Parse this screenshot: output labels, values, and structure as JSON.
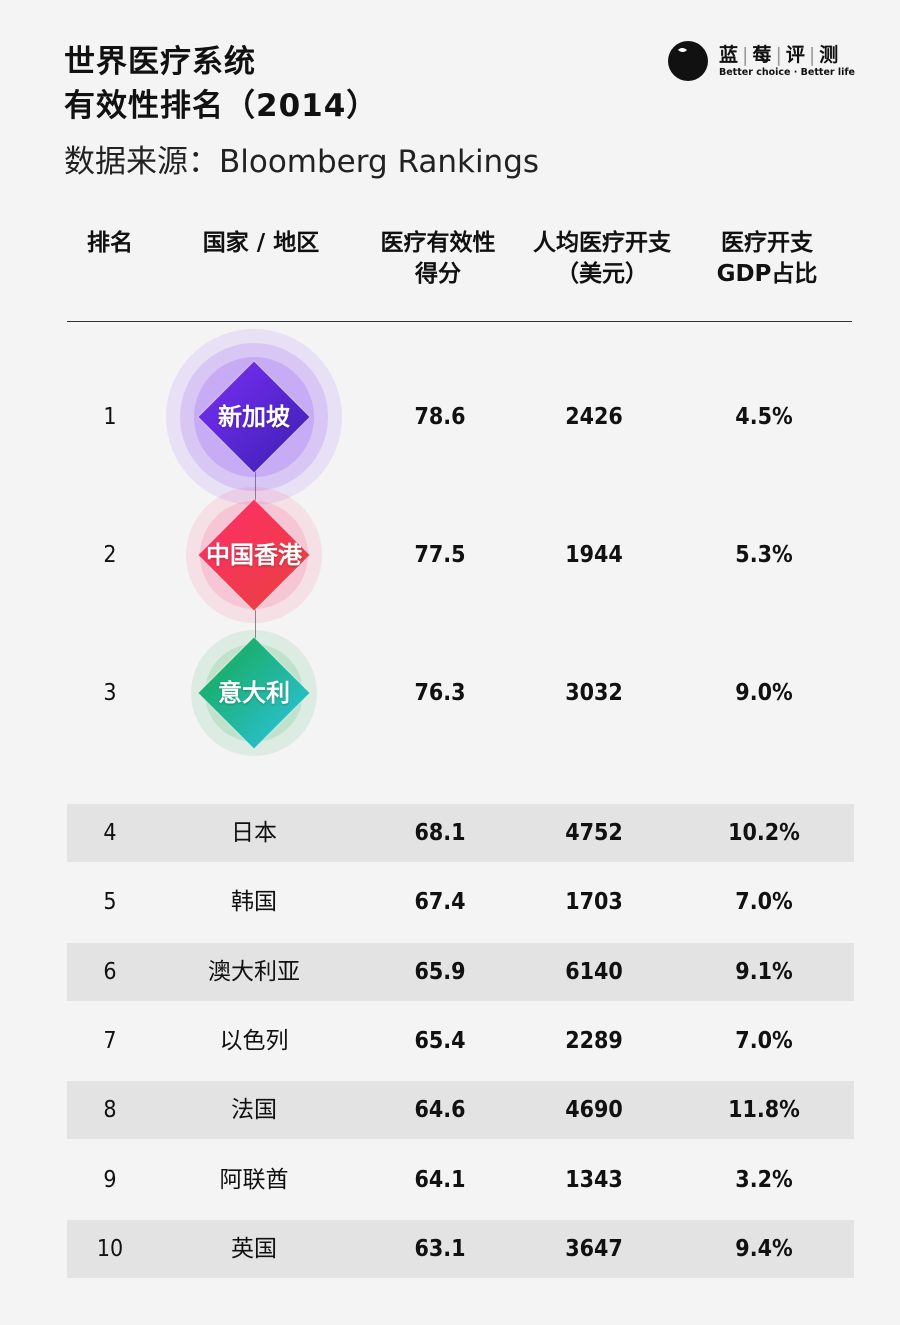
{
  "title": {
    "line1": "世界医疗系统",
    "line2": "有效性排名（2014）"
  },
  "source": "数据来源：Bloomberg Rankings",
  "logo": {
    "icon": "blueberry-logo-icon",
    "name": [
      "蓝",
      "莓",
      "评",
      "测"
    ],
    "tagline": "Better choice · Better life"
  },
  "table": {
    "headers": [
      {
        "line1": "排名",
        "line2": ""
      },
      {
        "line1": "国家 / 地区",
        "line2": ""
      },
      {
        "line1": "医疗有效性",
        "line2": "得分"
      },
      {
        "line1": "人均医疗开支",
        "line2": "（美元）"
      },
      {
        "line1": "医疗开支",
        "line2": "GDP占比"
      }
    ],
    "top3": [
      {
        "rank": "1",
        "country": "新加坡",
        "score": "78.6",
        "spend": "2426",
        "gdp": "4.5%",
        "colors": [
          "#7b2ff7",
          "#3a1fb0"
        ]
      },
      {
        "rank": "2",
        "country": "中国香港",
        "score": "77.5",
        "spend": "1944",
        "gdp": "5.3%",
        "colors": [
          "#ff2d6b",
          "#e8423c"
        ]
      },
      {
        "rank": "3",
        "country": "意大利",
        "score": "76.3",
        "spend": "3032",
        "gdp": "9.0%",
        "colors": [
          "#14a84a",
          "#2ec4e6"
        ]
      }
    ],
    "rows": [
      {
        "rank": "4",
        "country": "日本",
        "score": "68.1",
        "spend": "4752",
        "gdp": "10.2%"
      },
      {
        "rank": "5",
        "country": "韩国",
        "score": "67.4",
        "spend": "1703",
        "gdp": "7.0%"
      },
      {
        "rank": "6",
        "country": "澳大利亚",
        "score": "65.9",
        "spend": "6140",
        "gdp": "9.1%"
      },
      {
        "rank": "7",
        "country": "以色列",
        "score": "65.4",
        "spend": "2289",
        "gdp": "7.0%"
      },
      {
        "rank": "8",
        "country": "法国",
        "score": "64.6",
        "spend": "4690",
        "gdp": "11.8%"
      },
      {
        "rank": "9",
        "country": "阿联酋",
        "score": "64.1",
        "spend": "1343",
        "gdp": "3.2%"
      },
      {
        "rank": "10",
        "country": "英国",
        "score": "63.1",
        "spend": "3647",
        "gdp": "9.4%"
      }
    ]
  }
}
